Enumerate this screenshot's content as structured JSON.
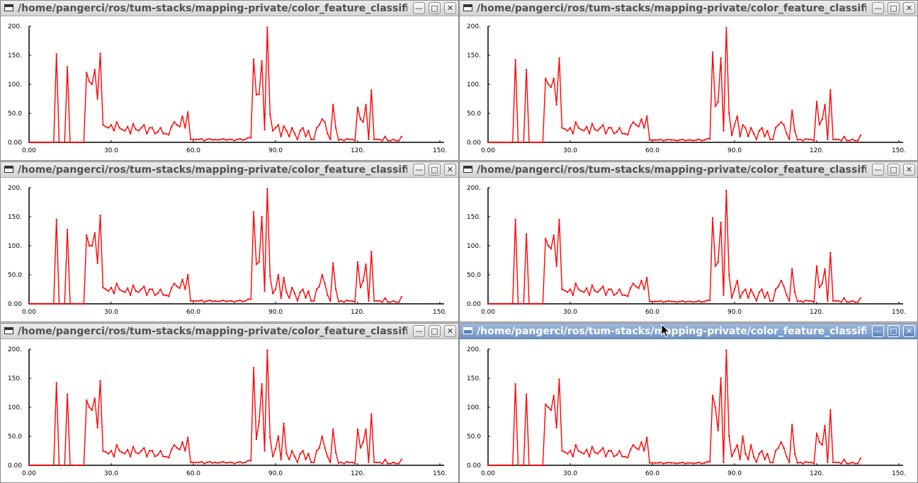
{
  "windows": [
    {
      "title": "/home/pangerci/ros/tum-stacks/mapping-private/color_feature_classification",
      "active": false,
      "min_icon": "minimize-icon",
      "max_icon": "maximize-icon",
      "close_icon": "close-icon"
    },
    {
      "title": "/home/pangerci/ros/tum-stacks/mapping-private/color_feature_classification",
      "active": false,
      "min_icon": "minimize-icon",
      "max_icon": "maximize-icon",
      "close_icon": "close-icon"
    },
    {
      "title": "/home/pangerci/ros/tum-stacks/mapping-private/color_feature_classification",
      "active": false,
      "min_icon": "minimize-icon",
      "max_icon": "maximize-icon",
      "close_icon": "close-icon"
    },
    {
      "title": "/home/pangerci/ros/tum-stacks/mapping-private/color_feature_classification",
      "active": false,
      "min_icon": "minimize-icon",
      "max_icon": "maximize-icon",
      "close_icon": "close-icon"
    },
    {
      "title": "/home/pangerci/ros/tum-stacks/mapping-private/color_feature_classification",
      "active": false,
      "min_icon": "minimize-icon",
      "max_icon": "maximize-icon",
      "close_icon": "close-icon"
    },
    {
      "title": "/home/pangerci/ros/tum-stacks/mapping-private/color_feature_classification",
      "active": true,
      "min_icon": "minimize-icon",
      "max_icon": "maximize-icon",
      "close_icon": "close-icon"
    }
  ],
  "colors": {
    "line": "#ff0000",
    "axis": "#000000",
    "active_title": "#6f93c6"
  },
  "chart_data": [
    {
      "type": "line",
      "xlim": [
        0,
        150
      ],
      "ylim": [
        0,
        200
      ],
      "x_ticks": [
        "0.00",
        "30.0",
        "60.0",
        "90.0",
        "120.",
        "150."
      ],
      "y_ticks": [
        "0.00",
        "50.0",
        "100.",
        "150.",
        "200."
      ],
      "series": [
        {
          "values": [
            0,
            0,
            0,
            0,
            0,
            0,
            0,
            0,
            0,
            0,
            152,
            0,
            0,
            0,
            130,
            0,
            0,
            0,
            0,
            0,
            0,
            120,
            105,
            100,
            125,
            75,
            153,
            30,
            27,
            25,
            30,
            20,
            35,
            25,
            22,
            20,
            27,
            15,
            32,
            22,
            20,
            25,
            30,
            15,
            25,
            25,
            15,
            18,
            25,
            15,
            15,
            13,
            27,
            35,
            30,
            27,
            45,
            25,
            52,
            5,
            5,
            5,
            5,
            6,
            3,
            5,
            6,
            4,
            5,
            4,
            5,
            6,
            4,
            5,
            5,
            3,
            5,
            6,
            4,
            5,
            8,
            8,
            143,
            82,
            83,
            140,
            22,
            198,
            48,
            20,
            25,
            30,
            10,
            28,
            20,
            10,
            25,
            15,
            5,
            20,
            25,
            10,
            20,
            5,
            5,
            25,
            30,
            40,
            35,
            15,
            5,
            65,
            25,
            4,
            5,
            3,
            6,
            5,
            5,
            3,
            60,
            40,
            35,
            65,
            5,
            90,
            5,
            5,
            5,
            3,
            10,
            3,
            3,
            5,
            3,
            3,
            10
          ]
        }
      ]
    },
    {
      "type": "line",
      "xlim": [
        0,
        150
      ],
      "ylim": [
        0,
        200
      ],
      "x_ticks": [
        "0.00",
        "30.0",
        "60.0",
        "90.0",
        "120.",
        "150."
      ],
      "y_ticks": [
        "0.00",
        "50.0",
        "100.",
        "150.",
        "200."
      ],
      "series": [
        {
          "values": [
            0,
            0,
            0,
            0,
            0,
            0,
            0,
            0,
            0,
            0,
            142,
            0,
            0,
            0,
            125,
            0,
            0,
            0,
            0,
            0,
            0,
            110,
            100,
            95,
            110,
            65,
            145,
            25,
            23,
            20,
            25,
            15,
            35,
            25,
            22,
            20,
            27,
            15,
            32,
            22,
            20,
            25,
            30,
            15,
            25,
            25,
            15,
            18,
            25,
            15,
            15,
            13,
            27,
            35,
            30,
            27,
            40,
            25,
            45,
            4,
            4,
            4,
            4,
            5,
            3,
            4,
            5,
            4,
            4,
            3,
            4,
            5,
            3,
            4,
            4,
            3,
            4,
            5,
            3,
            4,
            6,
            6,
            155,
            62,
            70,
            145,
            20,
            197,
            50,
            12,
            30,
            45,
            10,
            30,
            25,
            10,
            25,
            15,
            5,
            20,
            25,
            10,
            20,
            5,
            5,
            25,
            30,
            35,
            30,
            15,
            5,
            55,
            20,
            4,
            5,
            3,
            6,
            5,
            5,
            3,
            70,
            30,
            40,
            65,
            5,
            90,
            5,
            5,
            5,
            3,
            10,
            3,
            3,
            5,
            3,
            3,
            12
          ]
        }
      ]
    },
    {
      "type": "line",
      "xlim": [
        0,
        150
      ],
      "ylim": [
        0,
        200
      ],
      "x_ticks": [
        "0.00",
        "30.0",
        "60.0",
        "90.0",
        "120.",
        "150."
      ],
      "y_ticks": [
        "0.00",
        "50.0",
        "100.",
        "150.",
        "200."
      ],
      "series": [
        {
          "values": [
            0,
            0,
            0,
            0,
            0,
            0,
            0,
            0,
            0,
            0,
            145,
            0,
            0,
            0,
            128,
            0,
            0,
            0,
            0,
            0,
            0,
            118,
            100,
            100,
            122,
            70,
            152,
            28,
            25,
            22,
            28,
            18,
            35,
            25,
            22,
            20,
            27,
            15,
            32,
            22,
            20,
            25,
            30,
            15,
            25,
            25,
            15,
            18,
            25,
            15,
            15,
            13,
            27,
            35,
            30,
            27,
            42,
            25,
            50,
            5,
            5,
            5,
            5,
            6,
            3,
            5,
            6,
            4,
            5,
            4,
            5,
            6,
            4,
            5,
            5,
            3,
            5,
            6,
            4,
            5,
            8,
            8,
            158,
            68,
            72,
            150,
            22,
            198,
            48,
            18,
            25,
            50,
            10,
            45,
            20,
            10,
            28,
            18,
            5,
            20,
            25,
            10,
            22,
            5,
            5,
            25,
            30,
            50,
            35,
            15,
            5,
            70,
            25,
            4,
            5,
            3,
            6,
            5,
            5,
            3,
            72,
            28,
            40,
            68,
            5,
            90,
            5,
            5,
            5,
            3,
            10,
            3,
            3,
            5,
            3,
            3,
            12
          ]
        }
      ]
    },
    {
      "type": "line",
      "xlim": [
        0,
        150
      ],
      "ylim": [
        0,
        200
      ],
      "x_ticks": [
        "0.00",
        "30.0",
        "60.0",
        "90.0",
        "120.",
        "150."
      ],
      "y_ticks": [
        "0.00",
        "50.0",
        "100.",
        "150.",
        "200."
      ],
      "series": [
        {
          "values": [
            0,
            0,
            0,
            0,
            0,
            0,
            0,
            0,
            0,
            0,
            145,
            0,
            0,
            0,
            120,
            0,
            0,
            0,
            0,
            0,
            0,
            112,
            100,
            95,
            118,
            65,
            145,
            25,
            23,
            20,
            25,
            15,
            35,
            25,
            22,
            20,
            27,
            15,
            32,
            22,
            20,
            25,
            30,
            15,
            25,
            25,
            15,
            18,
            25,
            15,
            15,
            13,
            27,
            35,
            30,
            27,
            40,
            25,
            45,
            4,
            4,
            4,
            4,
            5,
            3,
            4,
            5,
            4,
            4,
            3,
            4,
            5,
            3,
            4,
            4,
            3,
            4,
            5,
            3,
            4,
            6,
            6,
            148,
            65,
            72,
            140,
            15,
            195,
            50,
            10,
            25,
            40,
            10,
            20,
            25,
            10,
            25,
            15,
            5,
            20,
            25,
            10,
            20,
            5,
            5,
            25,
            30,
            40,
            30,
            15,
            5,
            60,
            20,
            4,
            5,
            3,
            6,
            5,
            5,
            3,
            65,
            28,
            35,
            60,
            5,
            88,
            5,
            5,
            5,
            3,
            10,
            3,
            3,
            5,
            3,
            3,
            10
          ]
        }
      ]
    },
    {
      "type": "line",
      "xlim": [
        0,
        150
      ],
      "ylim": [
        0,
        200
      ],
      "x_ticks": [
        "0.00",
        "30.0",
        "60.0",
        "90.0",
        "120.",
        "150."
      ],
      "y_ticks": [
        "0.00",
        "50.0",
        "100.",
        "150.",
        "200."
      ],
      "series": [
        {
          "values": [
            0,
            0,
            0,
            0,
            0,
            0,
            0,
            0,
            0,
            0,
            142,
            0,
            0,
            0,
            122,
            0,
            0,
            0,
            0,
            0,
            0,
            112,
            100,
            95,
            115,
            65,
            145,
            25,
            23,
            20,
            25,
            15,
            35,
            25,
            22,
            20,
            27,
            15,
            32,
            22,
            20,
            25,
            30,
            15,
            25,
            25,
            15,
            18,
            25,
            15,
            15,
            13,
            27,
            35,
            30,
            27,
            40,
            25,
            48,
            5,
            5,
            5,
            5,
            6,
            3,
            5,
            6,
            4,
            5,
            4,
            5,
            6,
            4,
            5,
            5,
            3,
            5,
            6,
            4,
            5,
            8,
            8,
            168,
            45,
            75,
            140,
            25,
            198,
            48,
            15,
            28,
            50,
            10,
            72,
            20,
            10,
            25,
            15,
            5,
            20,
            25,
            10,
            20,
            5,
            5,
            25,
            30,
            50,
            30,
            15,
            5,
            62,
            22,
            4,
            5,
            3,
            6,
            5,
            5,
            3,
            62,
            30,
            40,
            62,
            5,
            88,
            5,
            5,
            5,
            3,
            10,
            3,
            3,
            5,
            3,
            3,
            10
          ]
        }
      ]
    },
    {
      "type": "line",
      "xlim": [
        0,
        150
      ],
      "ylim": [
        0,
        200
      ],
      "x_ticks": [
        "0.00",
        "30.0",
        "60.0",
        "90.0",
        "120.",
        "150."
      ],
      "y_ticks": [
        "0.00",
        "50.0",
        "100.",
        "150.",
        "200."
      ],
      "series": [
        {
          "values": [
            0,
            0,
            0,
            0,
            0,
            0,
            0,
            0,
            0,
            0,
            140,
            0,
            0,
            0,
            122,
            0,
            0,
            0,
            0,
            0,
            0,
            105,
            100,
            95,
            120,
            65,
            148,
            25,
            23,
            20,
            25,
            15,
            35,
            25,
            22,
            20,
            27,
            15,
            32,
            22,
            20,
            25,
            30,
            15,
            25,
            25,
            15,
            18,
            25,
            15,
            15,
            13,
            27,
            35,
            30,
            27,
            40,
            25,
            48,
            4,
            4,
            4,
            4,
            5,
            3,
            4,
            5,
            4,
            4,
            3,
            4,
            5,
            3,
            4,
            4,
            3,
            4,
            5,
            3,
            4,
            6,
            6,
            120,
            100,
            60,
            150,
            5,
            198,
            50,
            15,
            25,
            35,
            10,
            50,
            20,
            10,
            35,
            15,
            5,
            20,
            25,
            10,
            20,
            5,
            5,
            25,
            30,
            40,
            30,
            15,
            5,
            70,
            20,
            4,
            5,
            3,
            6,
            5,
            5,
            3,
            55,
            40,
            35,
            68,
            5,
            95,
            5,
            5,
            5,
            3,
            10,
            3,
            3,
            5,
            3,
            3,
            12
          ]
        }
      ]
    }
  ]
}
